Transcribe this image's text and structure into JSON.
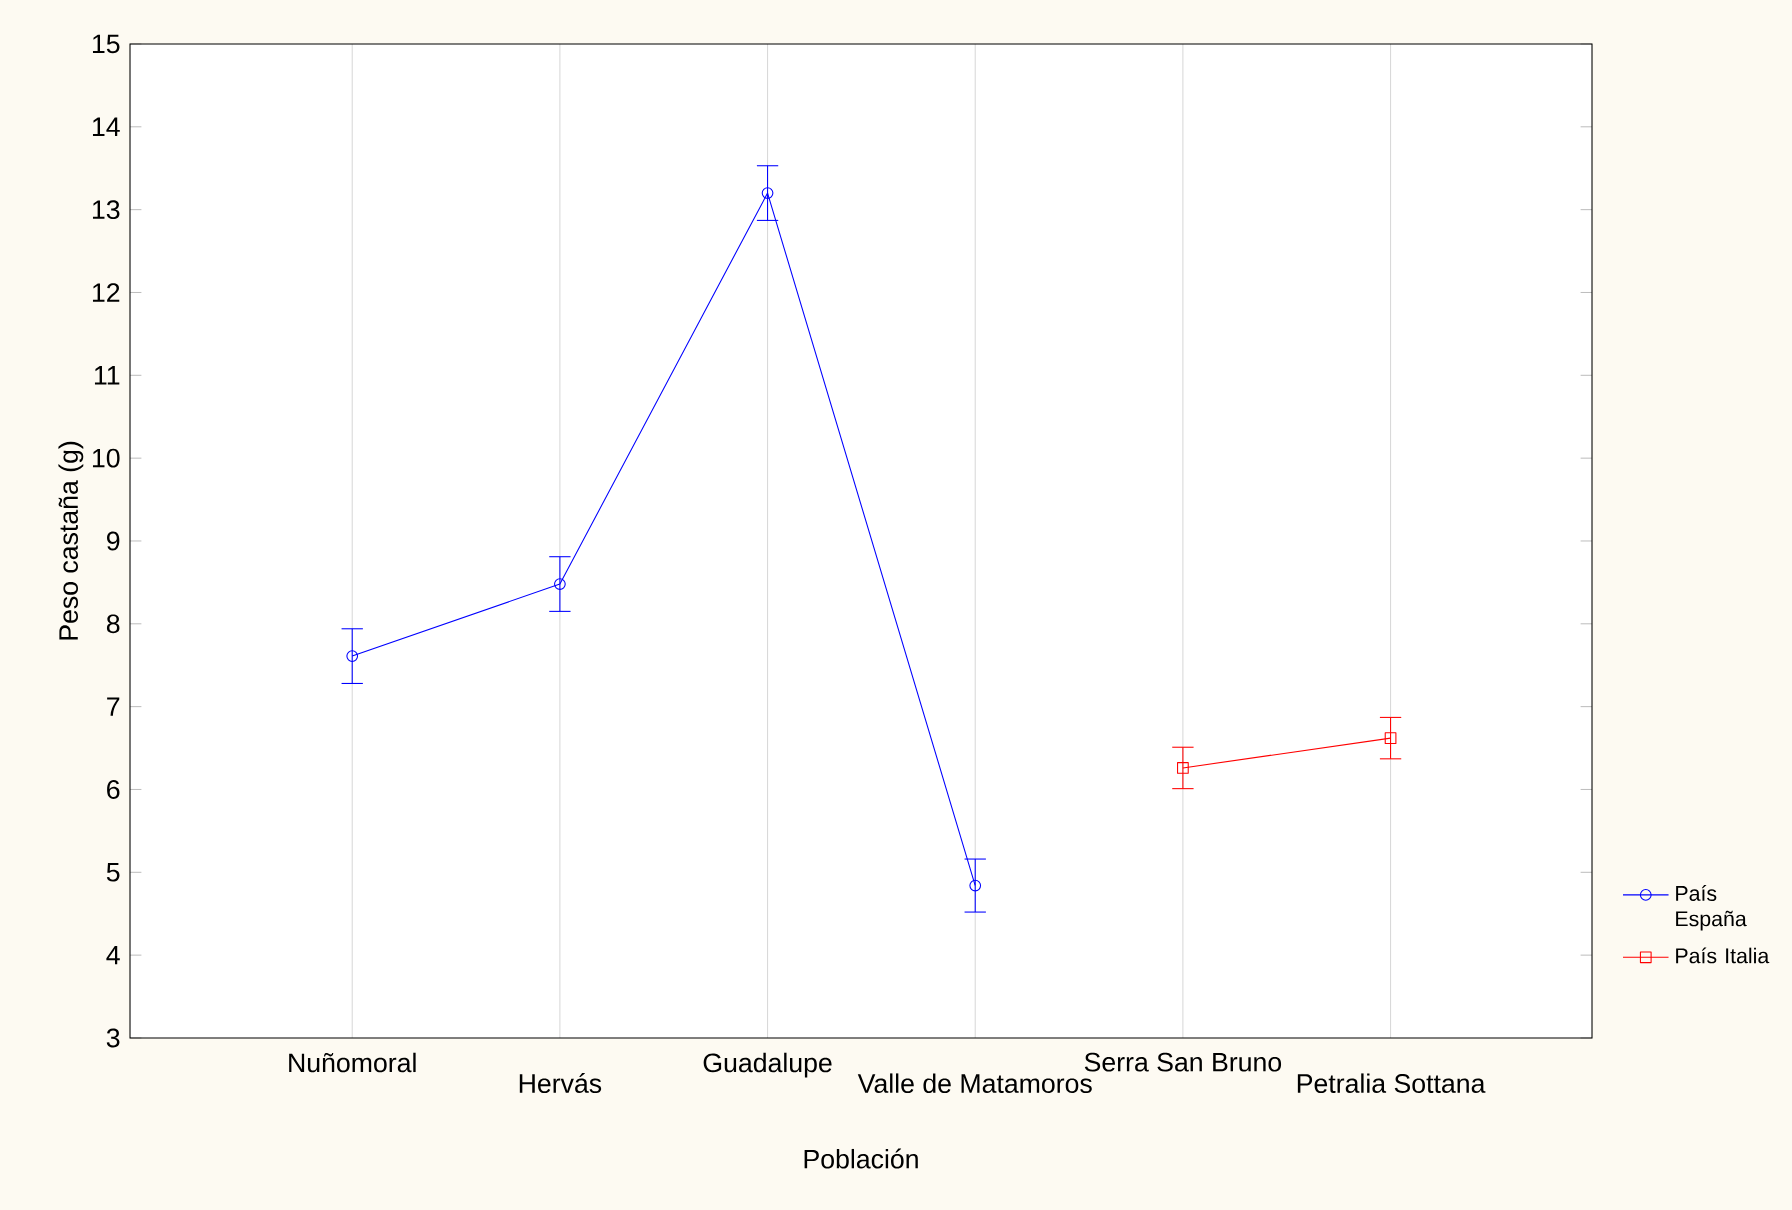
{
  "chart_data": {
    "type": "line",
    "xlabel": "Población",
    "ylabel": "Peso castaña (g)",
    "categories": [
      "Nuñomoral",
      "Hervás",
      "Guadalupe",
      "Valle de Matamoros",
      "Serra San Bruno",
      "Petralia Sottana"
    ],
    "series": [
      {
        "name": "País España",
        "color": "#0000ff",
        "marker": "circle",
        "values": [
          7.61,
          8.48,
          13.2,
          4.84,
          null,
          null
        ],
        "errors": [
          0.33,
          0.33,
          0.33,
          0.32,
          null,
          null
        ]
      },
      {
        "name": "País Italia",
        "color": "#ff0000",
        "marker": "square",
        "values": [
          null,
          null,
          null,
          null,
          6.26,
          6.62
        ],
        "errors": [
          null,
          null,
          null,
          null,
          0.25,
          0.25
        ]
      }
    ],
    "ylim": [
      3,
      15
    ],
    "yticks": [
      3,
      4,
      5,
      6,
      7,
      8,
      9,
      10,
      11,
      12,
      13,
      14,
      15
    ],
    "grid": "x",
    "legend": "right",
    "line_style": "solid"
  }
}
